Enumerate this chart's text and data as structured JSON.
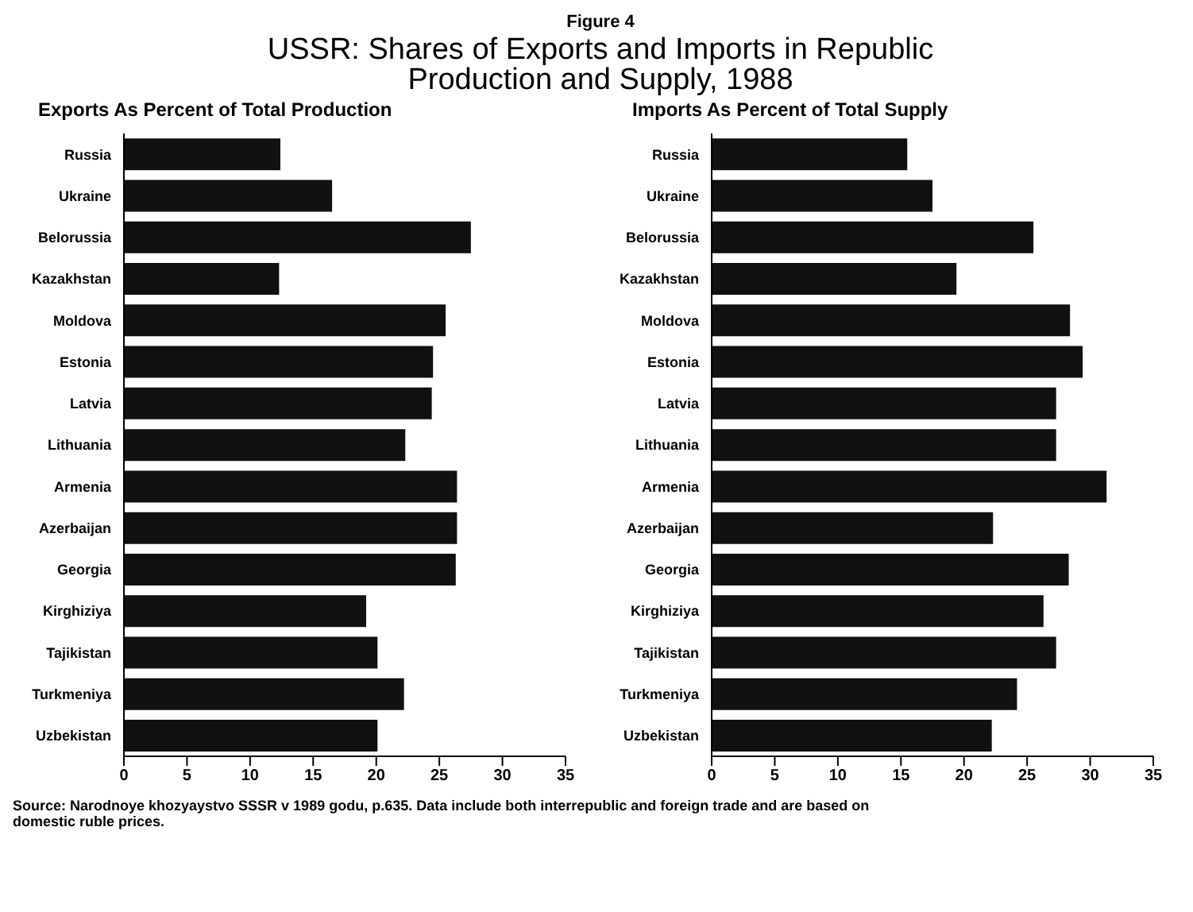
{
  "chart_data": [
    {
      "type": "bar",
      "orientation": "horizontal",
      "title": "Exports As Percent of Total Production",
      "annotations": [
        "Figure 4",
        "USSR: Shares of Exports and Imports in Republic Production and Supply, 1988"
      ],
      "categories": [
        "Russia",
        "Ukraine",
        "Belorussia",
        "Kazakhstan",
        "Moldova",
        "Estonia",
        "Latvia",
        "Lithuania",
        "Armenia",
        "Azerbaijan",
        "Georgia",
        "Kirghiziya",
        "Tajikistan",
        "Turkmeniya",
        "Uzbekistan"
      ],
      "values": [
        12.4,
        16.5,
        27.5,
        12.3,
        25.5,
        24.5,
        24.4,
        22.3,
        26.4,
        26.4,
        26.3,
        19.2,
        20.1,
        22.2,
        20.1
      ],
      "color": "#111111",
      "xlim": [
        0,
        35
      ],
      "xticks": [
        0,
        5,
        10,
        15,
        20,
        25,
        30,
        35
      ],
      "grid": false,
      "legend": false
    },
    {
      "type": "bar",
      "orientation": "horizontal",
      "title": "Imports As Percent of Total Supply",
      "annotations": [
        "Source: Narodnoye khozyaystvo SSSR v 1989 godu, p.635.  Data include both interrepublic and foreign trade and are based on domestic ruble prices."
      ],
      "categories": [
        "Russia",
        "Ukraine",
        "Belorussia",
        "Kazakhstan",
        "Moldova",
        "Estonia",
        "Latvia",
        "Lithuania",
        "Armenia",
        "Azerbaijan",
        "Georgia",
        "Kirghiziya",
        "Tajikistan",
        "Turkmeniya",
        "Uzbekistan"
      ],
      "values": [
        15.5,
        17.5,
        25.5,
        19.4,
        28.4,
        29.4,
        27.3,
        27.3,
        31.3,
        22.3,
        28.3,
        26.3,
        27.3,
        24.2,
        22.2
      ],
      "color": "#111111",
      "xlim": [
        0,
        35
      ],
      "xticks": [
        0,
        5,
        10,
        15,
        20,
        25,
        30,
        35
      ],
      "grid": false,
      "legend": false
    }
  ]
}
